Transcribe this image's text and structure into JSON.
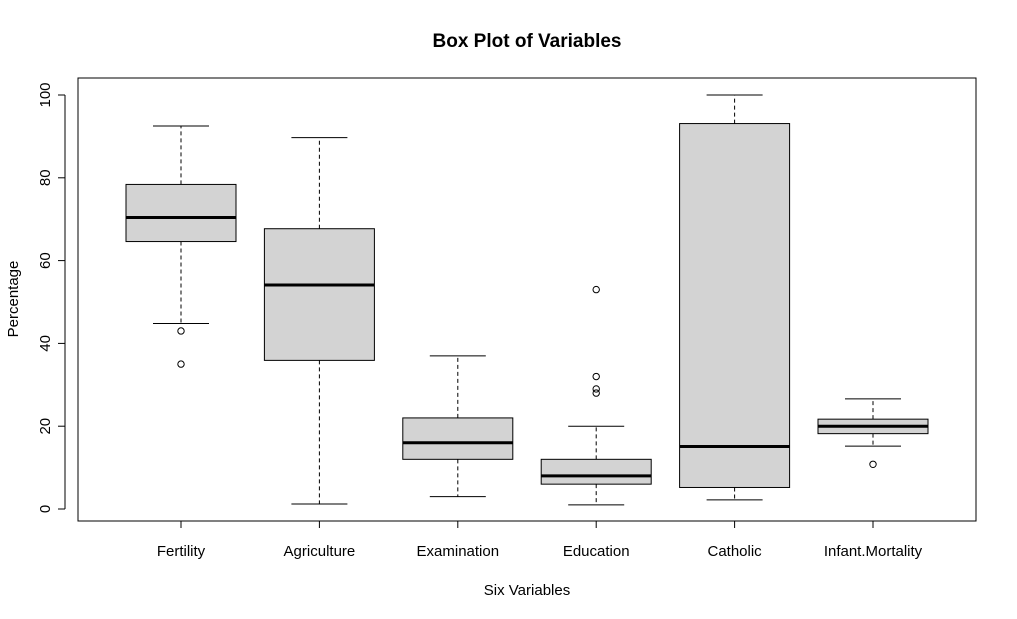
{
  "chart_data": {
    "type": "boxplot",
    "title": "Box Plot of Variables",
    "xlabel": "Six Variables",
    "ylabel": "Percentage",
    "ylim": [
      -3,
      104
    ],
    "yticks": [
      0,
      20,
      40,
      60,
      80,
      100
    ],
    "categories": [
      "Fertility",
      "Agriculture",
      "Examination",
      "Education",
      "Catholic",
      "Infant.Mortality"
    ],
    "box_fill": "#d3d3d3",
    "stroke": "#000000",
    "boxes": [
      {
        "category": "Fertility",
        "whisker_low": 44.8,
        "q1": 64.6,
        "median": 70.4,
        "q3": 78.4,
        "whisker_high": 92.5,
        "outliers": [
          43,
          35
        ]
      },
      {
        "category": "Agriculture",
        "whisker_low": 1.2,
        "q1": 35.9,
        "median": 54.1,
        "q3": 67.7,
        "whisker_high": 89.7,
        "outliers": []
      },
      {
        "category": "Examination",
        "whisker_low": 3,
        "q1": 12,
        "median": 16,
        "q3": 22,
        "whisker_high": 37,
        "outliers": []
      },
      {
        "category": "Education",
        "whisker_low": 1,
        "q1": 6,
        "median": 8,
        "q3": 12,
        "whisker_high": 20,
        "outliers": [
          53,
          32,
          29,
          28
        ]
      },
      {
        "category": "Catholic",
        "whisker_low": 2.2,
        "q1": 5.2,
        "median": 15.1,
        "q3": 93.1,
        "whisker_high": 100,
        "outliers": []
      },
      {
        "category": "Infant.Mortality",
        "whisker_low": 15.2,
        "q1": 18.2,
        "median": 20,
        "q3": 21.7,
        "whisker_high": 26.6,
        "outliers": [
          10.8
        ]
      }
    ]
  }
}
